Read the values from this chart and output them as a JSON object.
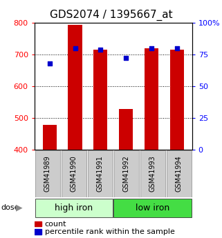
{
  "title": "GDS2074 / 1395667_at",
  "samples": [
    "GSM41989",
    "GSM41990",
    "GSM41991",
    "GSM41992",
    "GSM41993",
    "GSM41994"
  ],
  "counts": [
    478,
    793,
    716,
    528,
    720,
    716
  ],
  "percentiles": [
    68,
    80,
    79,
    72,
    80,
    80
  ],
  "ylim_left": [
    400,
    800
  ],
  "ylim_right": [
    0,
    100
  ],
  "yticks_left": [
    400,
    500,
    600,
    700,
    800
  ],
  "yticks_right": [
    0,
    25,
    50,
    75,
    100
  ],
  "bar_color": "#cc0000",
  "dot_color": "#0000cc",
  "high_iron_bg": "#ccffcc",
  "low_iron_bg": "#44dd44",
  "sample_bg": "#cccccc",
  "title_fontsize": 11,
  "tick_fontsize": 8,
  "legend_fontsize": 8,
  "group_fontsize": 9,
  "sample_fontsize": 7
}
